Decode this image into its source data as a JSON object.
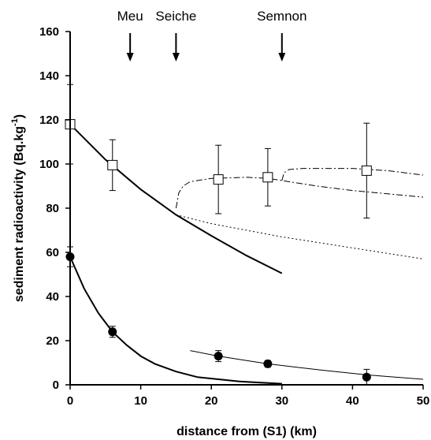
{
  "chart_data": {
    "type": "scatter",
    "title": "",
    "xlabel": "distance from (S1) (km)",
    "ylabel_main": "sediment radioactivity (Bq.kg",
    "ylabel_sup": "-1",
    "ylabel_close": ")",
    "xlim": [
      0,
      50
    ],
    "ylim": [
      0,
      160
    ],
    "xticks": [
      0,
      10,
      20,
      30,
      40,
      50
    ],
    "yticks": [
      0,
      20,
      40,
      60,
      80,
      100,
      120,
      140,
      160
    ],
    "grid": false,
    "legend": "none",
    "annotations": [
      {
        "label": "Meu",
        "x": 8.5
      },
      {
        "label": "Seiche",
        "x": 15
      },
      {
        "label": "Semnon",
        "x": 30
      }
    ],
    "series": [
      {
        "marker": "open-square",
        "points": [
          {
            "x": 0,
            "y": 118,
            "err": 18
          },
          {
            "x": 6,
            "y": 99.5,
            "err": 11.5
          },
          {
            "x": 21,
            "y": 93,
            "err": 15.5
          },
          {
            "x": 28,
            "y": 94,
            "err": 13
          },
          {
            "x": 42,
            "y": 97,
            "err": 21.5
          }
        ]
      },
      {
        "marker": "filled-circle",
        "points": [
          {
            "x": 0,
            "y": 58,
            "err": 4.5
          },
          {
            "x": 6,
            "y": 24,
            "err": 2.5
          },
          {
            "x": 21,
            "y": 13,
            "err": 2.5
          },
          {
            "x": 28,
            "y": 9.5,
            "err": 1.5
          },
          {
            "x": 42,
            "y": 3.5,
            "err": 3.5
          }
        ]
      }
    ],
    "curves": [
      {
        "style": "solid",
        "width": 2,
        "points": [
          [
            0,
            118
          ],
          [
            5,
            102
          ],
          [
            10,
            88.5
          ],
          [
            15,
            77
          ],
          [
            20,
            67.5
          ],
          [
            25,
            58.5
          ],
          [
            30,
            50.5
          ]
        ]
      },
      {
        "style": "dotted",
        "width": 1,
        "points": [
          [
            15,
            77
          ],
          [
            20,
            73
          ],
          [
            25,
            70
          ],
          [
            30,
            67
          ],
          [
            35,
            64.5
          ],
          [
            40,
            62
          ],
          [
            45,
            59.5
          ],
          [
            50,
            57
          ]
        ]
      },
      {
        "style": "dashdot",
        "width": 1,
        "points": [
          [
            15,
            80
          ],
          [
            15.4,
            87
          ],
          [
            16,
            90
          ],
          [
            17,
            92
          ],
          [
            20,
            93.5
          ],
          [
            25,
            94
          ],
          [
            28,
            93.5
          ],
          [
            30,
            92.5
          ],
          [
            35,
            90
          ],
          [
            40,
            88
          ],
          [
            45,
            86.5
          ],
          [
            50,
            85
          ]
        ]
      },
      {
        "style": "dashdot",
        "width": 1,
        "points": [
          [
            30,
            92.5
          ],
          [
            30.3,
            96
          ],
          [
            31,
            97.5
          ],
          [
            33,
            98
          ],
          [
            40,
            98
          ],
          [
            45,
            97
          ],
          [
            50,
            95
          ]
        ]
      },
      {
        "style": "solid",
        "width": 2,
        "points": [
          [
            0,
            58
          ],
          [
            2,
            43.5
          ],
          [
            4,
            32.5
          ],
          [
            6,
            24
          ],
          [
            8,
            18
          ],
          [
            10,
            13
          ],
          [
            12,
            9.5
          ],
          [
            15,
            6
          ],
          [
            18,
            3.5
          ],
          [
            21,
            2.5
          ],
          [
            24,
            1.5
          ],
          [
            27,
            1
          ],
          [
            30,
            0.5
          ]
        ]
      },
      {
        "style": "solid",
        "width": 1,
        "points": [
          [
            17,
            15.5
          ],
          [
            21,
            13
          ],
          [
            25,
            11
          ],
          [
            28,
            9.5
          ],
          [
            32,
            8
          ],
          [
            36,
            6.5
          ],
          [
            42,
            4.5
          ],
          [
            46,
            3.5
          ],
          [
            50,
            2.5
          ]
        ]
      }
    ]
  }
}
